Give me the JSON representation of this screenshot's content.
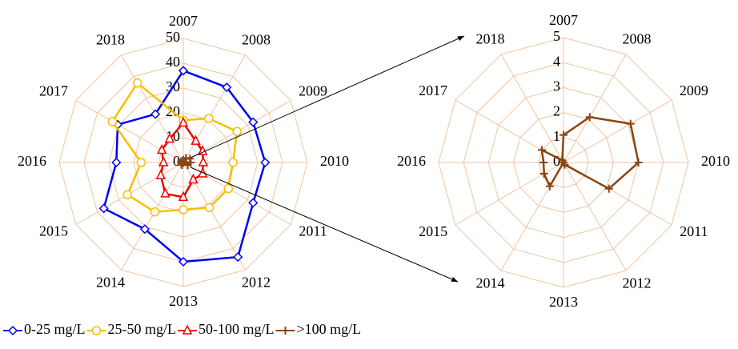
{
  "chart_data": [
    {
      "type": "radar",
      "categories": [
        "2007",
        "2008",
        "2009",
        "2010",
        "2011",
        "2012",
        "2013",
        "2014",
        "2015",
        "2016",
        "2017",
        "2018"
      ],
      "rlim": [
        0,
        50
      ],
      "rticks": [
        0,
        10,
        20,
        30,
        40,
        50
      ],
      "grid": true,
      "legend": "bottom",
      "series": [
        {
          "name": "0-25 mg/L",
          "color": "#0000ee",
          "marker": "diamond",
          "values": [
            37,
            35,
            32.5,
            33,
            32.5,
            44,
            40,
            31,
            37,
            27,
            30.5,
            22.5
          ]
        },
        {
          "name": "25-50 mg/L",
          "color": "#f5c000",
          "marker": "circle",
          "values": [
            17,
            20.5,
            25,
            20,
            21,
            21,
            19,
            23,
            26,
            17,
            33,
            37
          ]
        },
        {
          "name": "50-100 mg/L",
          "color": "#ee0000",
          "marker": "triangle",
          "values": [
            16,
            10,
            9,
            8,
            9,
            8,
            14,
            14.5,
            10.5,
            8,
            10,
            11
          ]
        },
        {
          "name": ">100 mg/L",
          "color": "#8b4513",
          "marker": "plus",
          "values": [
            1.1,
            2.1,
            3.1,
            3,
            2.1,
            0.1,
            0,
            1.1,
            0.9,
            0.8,
            1,
            0.1
          ]
        }
      ]
    },
    {
      "type": "radar",
      "categories": [
        "2007",
        "2008",
        "2009",
        "2010",
        "2011",
        "2012",
        "2013",
        "2014",
        "2015",
        "2016",
        "2017",
        "2018"
      ],
      "rlim": [
        0,
        5
      ],
      "rticks": [
        0,
        1,
        2,
        3,
        4,
        5
      ],
      "grid": true,
      "series": [
        {
          "color": "#8b4513",
          "marker": "plus",
          "values": [
            1.1,
            2.1,
            3.1,
            3,
            2.1,
            0.1,
            0,
            1.1,
            0.9,
            0.8,
            1,
            0.1
          ]
        }
      ]
    }
  ]
}
